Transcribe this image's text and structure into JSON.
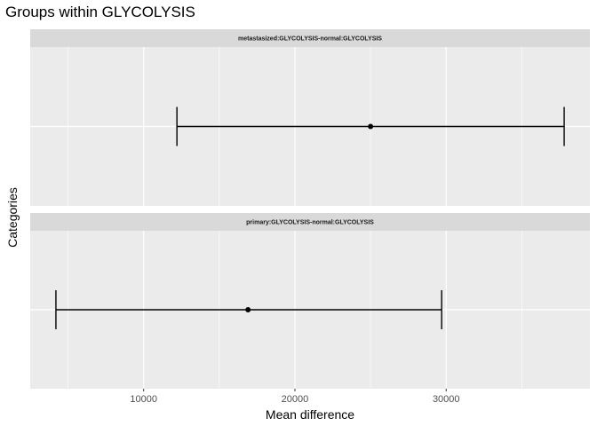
{
  "chart_data": {
    "type": "errorbar",
    "title": "Groups within GLYCOLYSIS",
    "xlabel": "Mean difference",
    "ylabel": "Categories",
    "xlim": [
      2500,
      39500
    ],
    "x_ticks": [
      10000,
      20000,
      30000
    ],
    "x_tick_labels": [
      "10000",
      "20000",
      "30000"
    ],
    "grid": true,
    "facets": [
      {
        "label": "metastasized:GLYCOLYSIS-normal:GLYCOLYSIS",
        "estimate": 25000,
        "lower": 12200,
        "upper": 37800
      },
      {
        "label": "primary:GLYCOLYSIS-normal:GLYCOLYSIS",
        "estimate": 16900,
        "lower": 4200,
        "upper": 29700
      }
    ]
  },
  "colors": {
    "panel_background": "#ebebeb",
    "strip_background": "#d9d9d9",
    "grid_major": "#ffffff",
    "mark": "#000000"
  }
}
